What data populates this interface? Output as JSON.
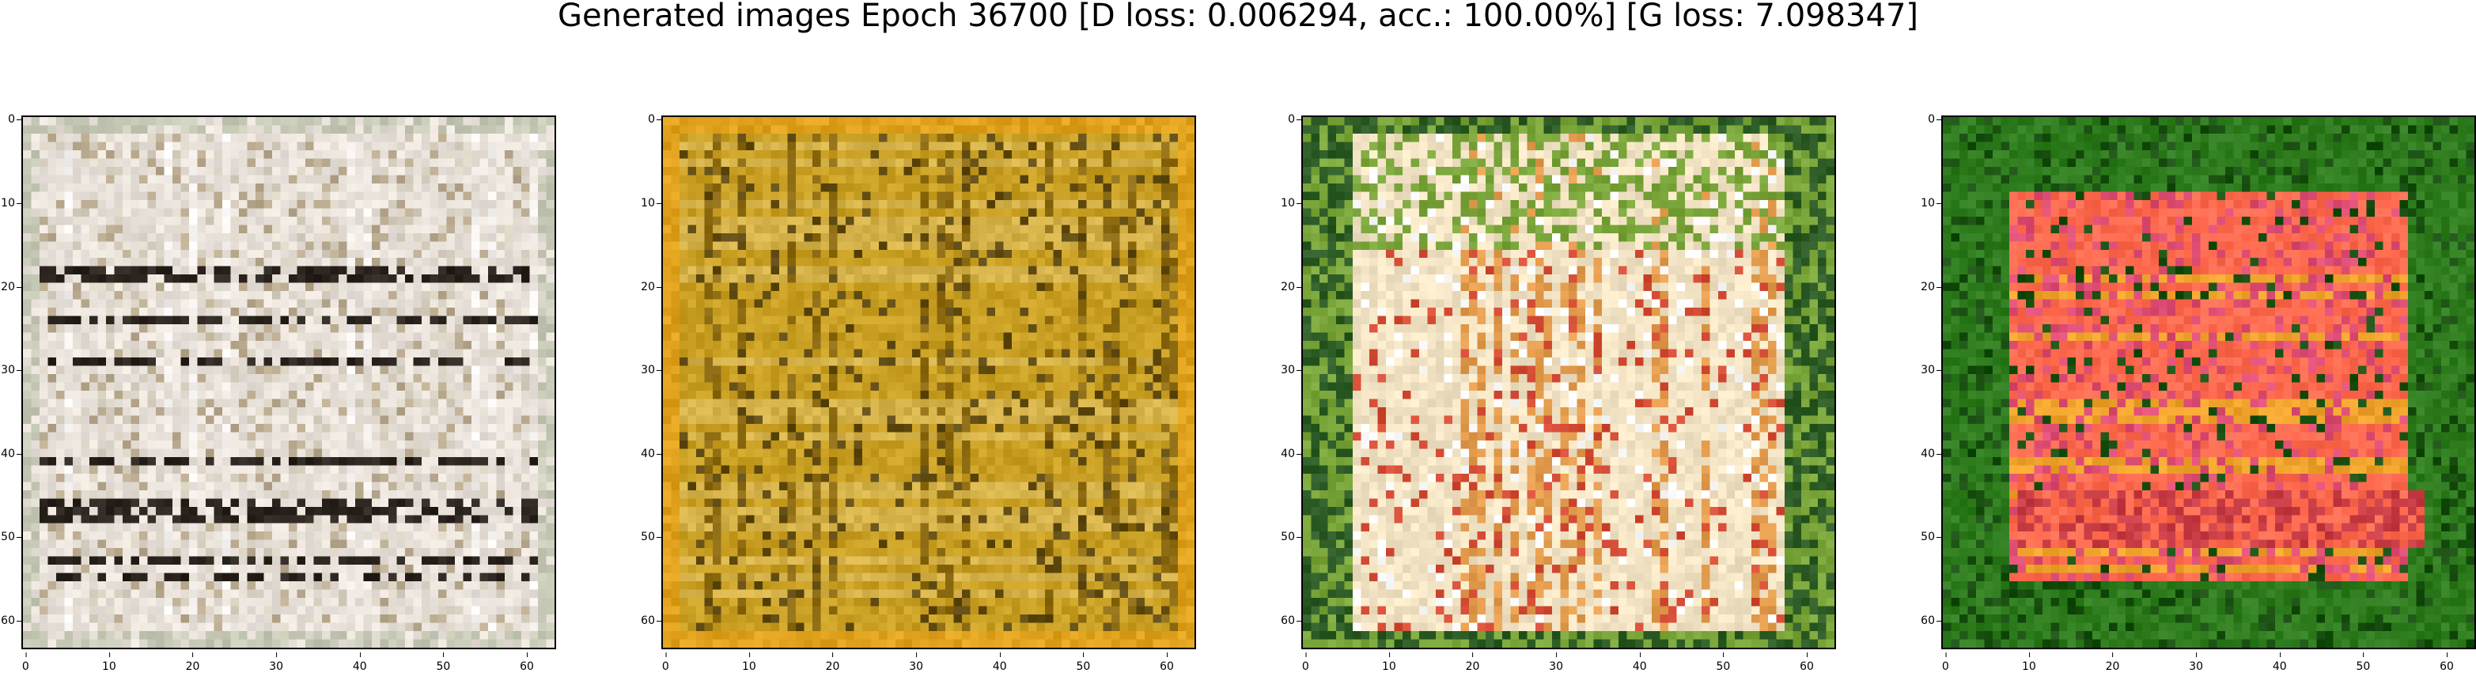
{
  "title": "Generated images Epoch 36700 [D loss: 0.006294, acc.: 100.00%] [G loss: 7.098347]",
  "axis": {
    "x_ticks": [
      "0",
      "10",
      "20",
      "30",
      "40",
      "50",
      "60"
    ],
    "y_ticks": [
      "0",
      "10",
      "20",
      "30",
      "40",
      "50",
      "60"
    ],
    "grid": false
  },
  "images": [
    {
      "content": "generated-image-1",
      "palette": [
        "#e9e2da",
        "#d8d0c0",
        "#b8a98f",
        "#2b241f",
        "#f5f2f0",
        "#c6c9b6"
      ]
    },
    {
      "content": "generated-image-2",
      "palette": [
        "#c9a024",
        "#8d6b12",
        "#d5b34a",
        "#5f4a12",
        "#e0a11c",
        "#9c7a2c"
      ]
    },
    {
      "content": "generated-image-3",
      "palette": [
        "#f2e3c4",
        "#e39b4d",
        "#79a53a",
        "#ffffff",
        "#d34b34",
        "#2d5b25"
      ]
    },
    {
      "content": "generated-image-4",
      "palette": [
        "#2f7c1e",
        "#ff6a4f",
        "#dd4d73",
        "#f0a32c",
        "#184f11",
        "#c83d45"
      ]
    }
  ]
}
